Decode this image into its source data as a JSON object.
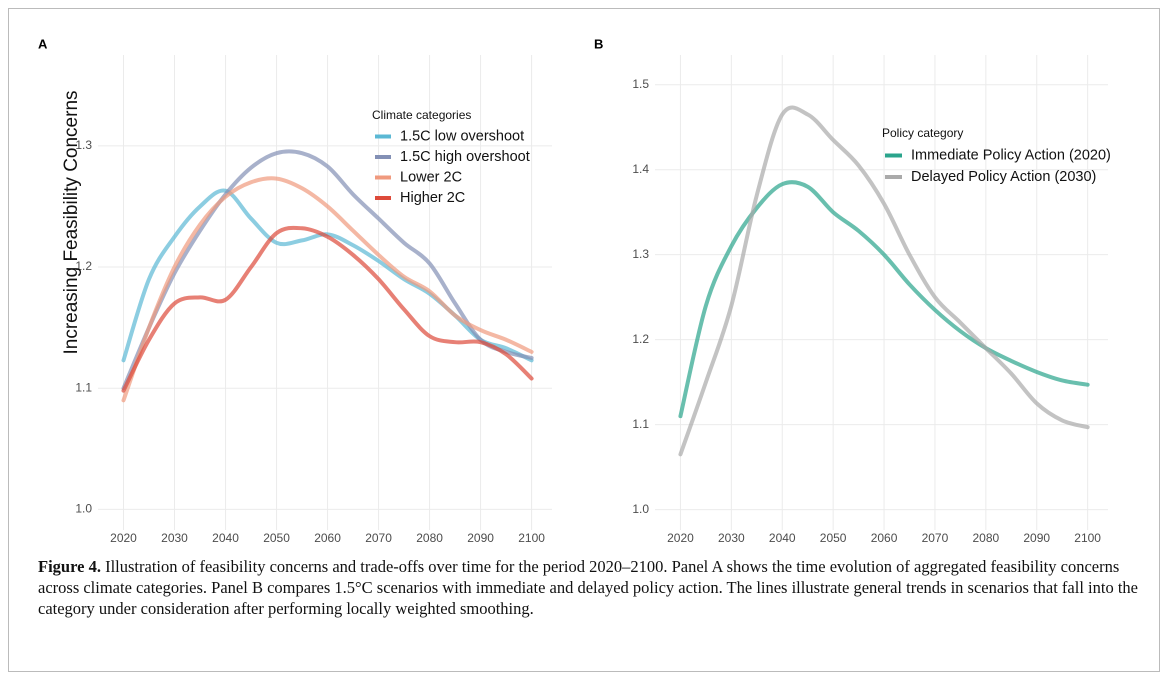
{
  "chart_data": [
    {
      "type": "line",
      "panel": "A",
      "ylabel": "Increasing Feasibility Concerns",
      "legend_title": "Climate categories",
      "x": [
        2020,
        2025,
        2030,
        2035,
        2040,
        2045,
        2050,
        2055,
        2060,
        2065,
        2070,
        2075,
        2080,
        2085,
        2090,
        2095,
        2100
      ],
      "series": [
        {
          "name": "1.5C low overshoot",
          "color": "#5bb8d4",
          "values": [
            1.123,
            1.19,
            1.225,
            1.25,
            1.263,
            1.24,
            1.22,
            1.222,
            1.227,
            1.218,
            1.205,
            1.19,
            1.178,
            1.16,
            1.14,
            1.133,
            1.123
          ]
        },
        {
          "name": "1.5C high overshoot",
          "color": "#8390b5",
          "values": [
            1.1,
            1.15,
            1.195,
            1.23,
            1.26,
            1.282,
            1.294,
            1.294,
            1.283,
            1.26,
            1.24,
            1.22,
            1.203,
            1.17,
            1.14,
            1.13,
            1.125
          ]
        },
        {
          "name": "Lower 2C",
          "color": "#f09a7e",
          "values": [
            1.09,
            1.15,
            1.2,
            1.235,
            1.258,
            1.27,
            1.273,
            1.265,
            1.25,
            1.23,
            1.21,
            1.192,
            1.18,
            1.16,
            1.148,
            1.14,
            1.13
          ]
        },
        {
          "name": "Higher 2C",
          "color": "#dd4a3a",
          "values": [
            1.098,
            1.14,
            1.17,
            1.175,
            1.173,
            1.2,
            1.228,
            1.232,
            1.225,
            1.21,
            1.19,
            1.165,
            1.143,
            1.138,
            1.138,
            1.128,
            1.108
          ]
        }
      ],
      "xlim": [
        2015,
        2104
      ],
      "xticks": [
        2020,
        2030,
        2040,
        2050,
        2060,
        2070,
        2080,
        2090,
        2100
      ],
      "ylim": [
        0.983,
        1.375
      ],
      "yticks": [
        {
          "value": 1.0,
          "label": "1.0"
        },
        1.1,
        1.2,
        1.3
      ],
      "grid": true
    },
    {
      "type": "line",
      "panel": "B",
      "legend_title": "Policy category",
      "x": [
        2020,
        2025,
        2030,
        2035,
        2040,
        2045,
        2050,
        2055,
        2060,
        2065,
        2070,
        2075,
        2080,
        2085,
        2090,
        2095,
        2100
      ],
      "series": [
        {
          "name": "Immediate Policy Action (2020)",
          "color": "#2aa48c",
          "values": [
            1.11,
            1.24,
            1.31,
            1.355,
            1.383,
            1.38,
            1.35,
            1.328,
            1.3,
            1.265,
            1.235,
            1.21,
            1.19,
            1.175,
            1.162,
            1.152,
            1.147
          ]
        },
        {
          "name": "Delayed Policy Action (2030)",
          "color": "#aaaaaa",
          "values": [
            1.065,
            1.15,
            1.24,
            1.37,
            1.465,
            1.465,
            1.435,
            1.405,
            1.36,
            1.3,
            1.25,
            1.22,
            1.19,
            1.16,
            1.125,
            1.105,
            1.097
          ]
        }
      ],
      "xlim": [
        2015,
        2104
      ],
      "xticks": [
        2020,
        2030,
        2040,
        2050,
        2060,
        2070,
        2080,
        2090,
        2100
      ],
      "ylim": [
        0.976,
        1.535
      ],
      "yticks": [
        {
          "value": 1.0,
          "label": "1.0"
        },
        1.1,
        1.2,
        1.3,
        1.4,
        1.5
      ],
      "grid": true
    }
  ],
  "caption": {
    "label": "Figure 4.",
    "text": "Illustration of feasibility concerns and trade-offs over time for the period 2020–2100. Panel A shows the time evolution of aggregated feasibility concerns across climate categories. Panel B compares 1.5°C scenarios with immediate and delayed policy action. The lines illustrate general trends in scenarios that fall into the category under consideration after performing locally weighted smoothing."
  }
}
